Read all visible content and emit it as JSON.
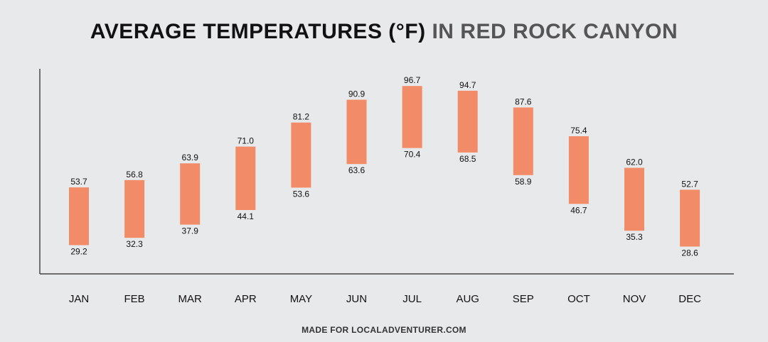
{
  "title": {
    "main": "AVERAGE TEMPERATURES (°F)",
    "accent": "IN RED ROCK CANYON"
  },
  "footer": "MADE FOR LOCALADVENTURER.COM",
  "colors": {
    "bar": "#f28b68",
    "axis": "#222222",
    "text": "#111111",
    "background": "#e8e9ea"
  },
  "chart_data": {
    "type": "range-bar",
    "title": "AVERAGE TEMPERATURES (°F) IN RED ROCK CANYON",
    "categories": [
      "JAN",
      "FEB",
      "MAR",
      "APR",
      "MAY",
      "JUN",
      "JUL",
      "AUG",
      "SEP",
      "OCT",
      "NOV",
      "DEC"
    ],
    "high": [
      53.7,
      56.8,
      63.9,
      71.0,
      81.2,
      90.9,
      96.7,
      94.7,
      87.6,
      75.4,
      62.0,
      52.7
    ],
    "low": [
      29.2,
      32.3,
      37.9,
      44.1,
      53.6,
      63.6,
      70.4,
      68.5,
      58.9,
      46.7,
      35.3,
      28.6
    ],
    "high_labels": [
      "53.7",
      "56.8",
      "63.9",
      "71.0",
      "81.2",
      "90.9",
      "96.7",
      "94.7",
      "87.6",
      "75.4",
      "62.0",
      "52.7"
    ],
    "low_labels": [
      "29.2",
      "32.3",
      "37.9",
      "44.1",
      "53.6",
      "63.6",
      "70.4",
      "68.5",
      "58.9",
      "46.7",
      "35.3",
      "28.6"
    ],
    "xlabel": "",
    "ylabel": "",
    "ylim": [
      17,
      104
    ],
    "grid": false,
    "legend": "none"
  }
}
